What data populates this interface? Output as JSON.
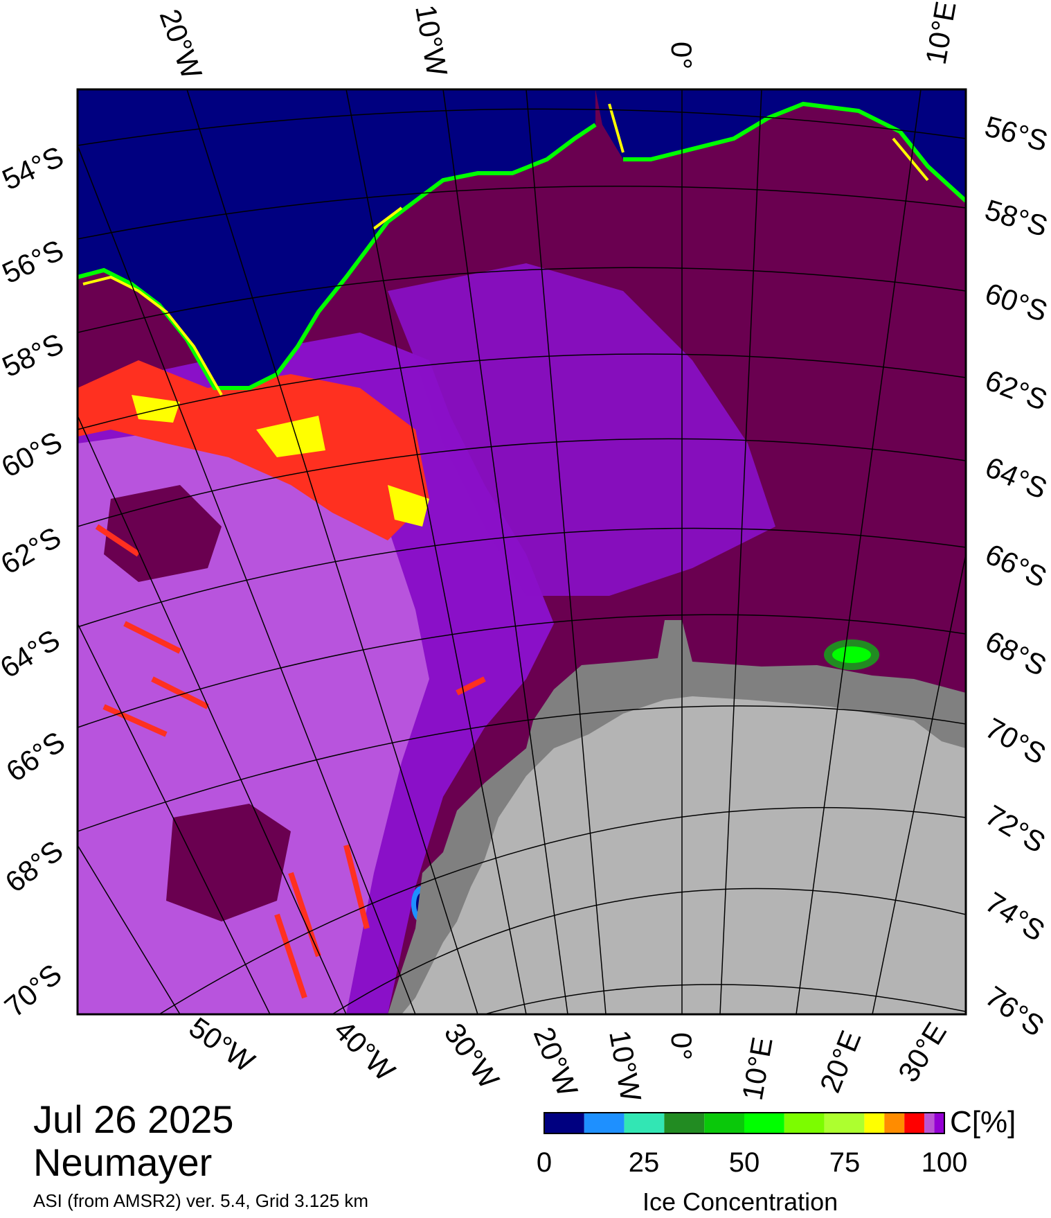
{
  "map": {
    "title_date": "Jul 26 2025",
    "title_station": "Neumayer",
    "subtitle": "ASI (from AMSR2) ver. 5.4,  Grid 3.125 km"
  },
  "top_axis_labels": [
    "20°W",
    "10°W",
    "0°",
    "10°E"
  ],
  "left_axis_labels": [
    "54°S",
    "56°S",
    "58°S",
    "60°S",
    "62°S",
    "64°S",
    "66°S",
    "68°S",
    "70°S"
  ],
  "right_axis_labels": [
    "56°S",
    "58°S",
    "60°S",
    "62°S",
    "64°S",
    "66°S",
    "68°S",
    "70°S",
    "72°S",
    "74°S",
    "76°S"
  ],
  "bottom_axis_labels": [
    "50°W",
    "40°W",
    "30°W",
    "20°W",
    "10°W",
    "0°",
    "10°E",
    "20°E",
    "30°E"
  ],
  "legend": {
    "unit": "C[%]",
    "title": "Ice Concentration",
    "ticks": [
      "0",
      "25",
      "50",
      "75",
      "100"
    ],
    "range": [
      0,
      100
    ],
    "colors": [
      "#000080",
      "#1e90ff",
      "#32e6b4",
      "#228b22",
      "#0ac80a",
      "#00ff00",
      "#7cfc00",
      "#adff2f",
      "#ffff00",
      "#ff8c00",
      "#ff0000",
      "#ba55d3",
      "#9400d3"
    ]
  },
  "colors": {
    "open_water": "#000080",
    "ice_max": "#6a0050",
    "ice_high": "#8a10c8",
    "ice_mid": "#c060e0",
    "ice_low": "#ff3020",
    "land": "#b4b4b4",
    "ice_shelf": "#808080"
  }
}
